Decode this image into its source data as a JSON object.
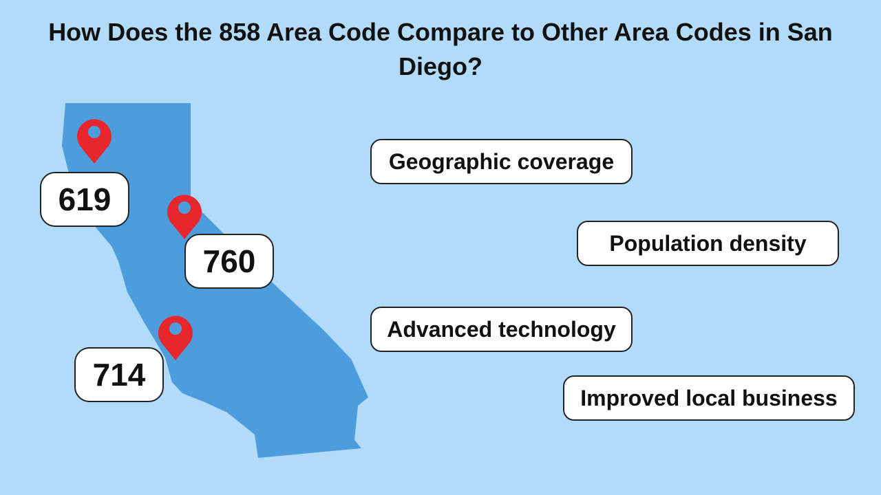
{
  "header": {
    "title": "How Does the 858 Area Code Compare to Other Area Codes in San Diego?"
  },
  "area_codes": [
    "619",
    "760",
    "714"
  ],
  "factors": [
    "Geographic coverage",
    "Population density",
    "Advanced technology",
    "Improved local business"
  ]
}
